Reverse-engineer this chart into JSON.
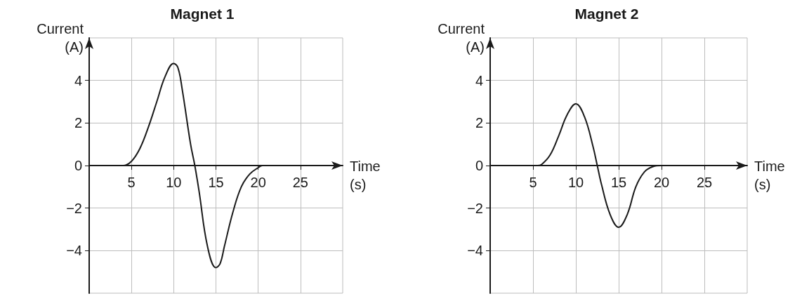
{
  "chart_data": [
    {
      "type": "line",
      "title": "Magnet 1",
      "xlabel": "Time\n(s)",
      "ylabel": "Current\n(A)",
      "x": [
        0,
        4,
        5,
        6,
        7,
        8,
        9,
        10,
        10.5,
        11,
        12,
        12.5,
        13,
        14,
        15,
        15.5,
        16,
        17,
        18,
        19,
        20,
        20.5,
        21
      ],
      "series": [
        {
          "color": "#1a1a1a",
          "values": [
            0,
            0,
            0.2,
            0.8,
            1.8,
            3.0,
            4.2,
            4.8,
            4.6,
            3.6,
            1.0,
            0,
            -1.2,
            -3.8,
            -4.8,
            -4.6,
            -3.8,
            -2.2,
            -1.0,
            -0.4,
            -0.1,
            0,
            0
          ]
        }
      ],
      "xlim": [
        0,
        30
      ],
      "xticks": [
        5,
        10,
        15,
        20,
        25
      ],
      "ylim": [
        -6,
        6
      ],
      "yticks": [
        -4,
        -2,
        0,
        2,
        4
      ],
      "grid": true,
      "marker": "none",
      "line_style": "solid"
    },
    {
      "type": "line",
      "title": "Magnet 2",
      "xlabel": "Time\n(s)",
      "ylabel": "Current\n(A)",
      "x": [
        0,
        5.5,
        6,
        7,
        8,
        9,
        10,
        11,
        12,
        12.5,
        13,
        14,
        15,
        16,
        17,
        18,
        19,
        20,
        20.5
      ],
      "series": [
        {
          "color": "#1a1a1a",
          "values": [
            0,
            0,
            0.05,
            0.5,
            1.4,
            2.4,
            2.9,
            2.3,
            0.9,
            0,
            -0.9,
            -2.3,
            -2.9,
            -2.3,
            -1.0,
            -0.3,
            -0.05,
            0,
            0
          ]
        }
      ],
      "xlim": [
        0,
        30
      ],
      "xticks": [
        5,
        10,
        15,
        20,
        25
      ],
      "ylim": [
        -6,
        6
      ],
      "yticks": [
        -4,
        -2,
        0,
        2,
        4
      ],
      "grid": true,
      "marker": "none",
      "line_style": "solid"
    }
  ]
}
